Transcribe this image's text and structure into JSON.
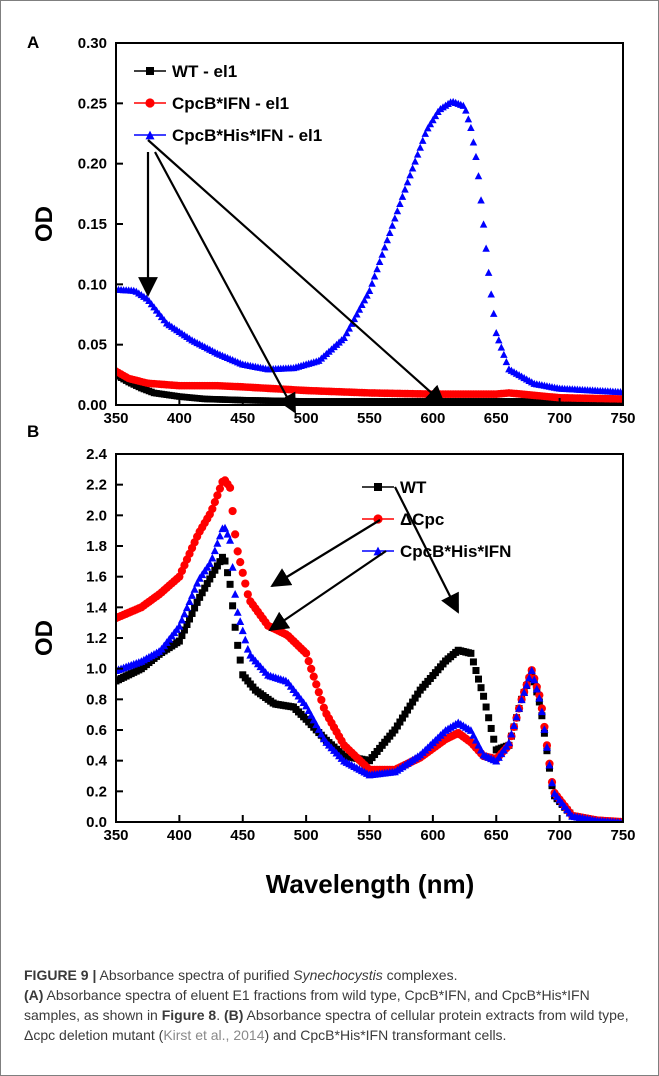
{
  "figure": {
    "caption": {
      "label": "FIGURE 9 |",
      "t1": " Absorbance spectra of purified ",
      "species": "Synechocystis",
      "t2": " complexes.",
      "a_tag": "(A)",
      "t3": " Absorbance spectra of eluent E1 fractions from wild type, CpcB*IFN, and CpcB*His*IFN samples, as shown in ",
      "fig8": "Figure 8",
      "t4": ". ",
      "b_tag": "(B)",
      "t5": " Absorbance spectra of cellular protein extracts from wild type, Δcpc deletion mutant (",
      "citation": "Kirst et al., 2014",
      "t6": ") and CpcB*His*IFN transformant cells."
    }
  },
  "chart_data": [
    {
      "panel": "A",
      "type": "scatter",
      "xlabel": "",
      "ylabel": "OD",
      "xlim": [
        350,
        750
      ],
      "ylim": [
        0.0,
        0.3
      ],
      "xticks": [
        350,
        400,
        450,
        500,
        550,
        600,
        650,
        700,
        750
      ],
      "yticks": [
        "0.00",
        "0.05",
        "0.10",
        "0.15",
        "0.20",
        "0.25",
        "0.30"
      ],
      "legend": "top-left",
      "series": [
        {
          "name": "WT - el1",
          "color": "#000000",
          "marker": "square",
          "x": [
            350,
            360,
            370,
            380,
            400,
            420,
            450,
            500,
            550,
            600,
            650,
            700,
            750
          ],
          "y": [
            0.025,
            0.019,
            0.014,
            0.01,
            0.007,
            0.005,
            0.004,
            0.003,
            0.003,
            0.003,
            0.003,
            0.003,
            0.003
          ]
        },
        {
          "name": "CpcB*IFN - el1",
          "color": "#ff0000",
          "marker": "circle",
          "x": [
            350,
            360,
            375,
            400,
            430,
            450,
            500,
            550,
            600,
            650,
            660,
            680,
            700,
            750
          ],
          "y": [
            0.028,
            0.022,
            0.018,
            0.016,
            0.016,
            0.015,
            0.012,
            0.01,
            0.009,
            0.009,
            0.01,
            0.008,
            0.006,
            0.005
          ]
        },
        {
          "name": "CpcB*His*IFN - el1",
          "color": "#0000ff",
          "marker": "triangle",
          "x": [
            350,
            365,
            375,
            390,
            410,
            430,
            450,
            470,
            490,
            510,
            530,
            550,
            565,
            580,
            595,
            605,
            615,
            625,
            630,
            635,
            640,
            645,
            650,
            660,
            680,
            700,
            750
          ],
          "y": [
            0.096,
            0.095,
            0.088,
            0.068,
            0.054,
            0.043,
            0.034,
            0.03,
            0.031,
            0.037,
            0.056,
            0.095,
            0.14,
            0.185,
            0.228,
            0.245,
            0.252,
            0.248,
            0.23,
            0.2,
            0.15,
            0.1,
            0.06,
            0.03,
            0.018,
            0.014,
            0.011
          ]
        }
      ],
      "annotations": "arrows from legend markers to curves"
    },
    {
      "panel": "B",
      "type": "scatter",
      "xlabel": "Wavelength (nm)",
      "ylabel": "OD",
      "xlim": [
        350,
        750
      ],
      "ylim": [
        0.0,
        2.4
      ],
      "xticks": [
        350,
        400,
        450,
        500,
        550,
        600,
        650,
        700,
        750
      ],
      "yticks": [
        "0.0",
        "0.2",
        "0.4",
        "0.6",
        "0.8",
        "1.0",
        "1.2",
        "1.4",
        "1.6",
        "1.8",
        "2.0",
        "2.2",
        "2.4"
      ],
      "legend": "top-right",
      "series": [
        {
          "name": "WT",
          "color": "#000000",
          "marker": "square",
          "x": [
            350,
            370,
            385,
            400,
            415,
            425,
            435,
            440,
            445,
            450,
            460,
            475,
            490,
            500,
            515,
            530,
            550,
            570,
            590,
            610,
            620,
            630,
            640,
            650,
            660,
            670,
            678,
            685,
            695,
            710,
            730,
            750
          ],
          "y": [
            0.92,
            1.0,
            1.1,
            1.18,
            1.45,
            1.6,
            1.74,
            1.55,
            1.2,
            0.96,
            0.86,
            0.77,
            0.75,
            0.67,
            0.54,
            0.43,
            0.4,
            0.6,
            0.86,
            1.05,
            1.12,
            1.1,
            0.82,
            0.47,
            0.5,
            0.8,
            0.98,
            0.75,
            0.18,
            0.04,
            0.01,
            0.0
          ]
        },
        {
          "name": "ΔCpc",
          "color": "#ff0000",
          "marker": "circle",
          "x": [
            350,
            370,
            385,
            400,
            415,
            425,
            435,
            440,
            445,
            455,
            470,
            485,
            500,
            515,
            530,
            550,
            570,
            590,
            610,
            620,
            630,
            640,
            650,
            660,
            670,
            678,
            685,
            695,
            710,
            730,
            750
          ],
          "y": [
            1.33,
            1.4,
            1.49,
            1.6,
            1.88,
            2.02,
            2.24,
            2.18,
            1.8,
            1.45,
            1.28,
            1.22,
            1.1,
            0.72,
            0.5,
            0.34,
            0.34,
            0.42,
            0.54,
            0.58,
            0.52,
            0.43,
            0.41,
            0.5,
            0.8,
            0.99,
            0.8,
            0.2,
            0.04,
            0.01,
            0.0
          ]
        },
        {
          "name": "CpcB*His*IFN",
          "color": "#0000ff",
          "marker": "triangle",
          "x": [
            350,
            370,
            385,
            400,
            415,
            425,
            435,
            440,
            445,
            455,
            470,
            485,
            500,
            515,
            530,
            550,
            570,
            590,
            610,
            620,
            630,
            640,
            650,
            660,
            670,
            678,
            685,
            695,
            710,
            730,
            750
          ],
          "y": [
            0.99,
            1.05,
            1.12,
            1.28,
            1.58,
            1.7,
            1.94,
            1.84,
            1.4,
            1.1,
            0.96,
            0.92,
            0.76,
            0.53,
            0.4,
            0.31,
            0.33,
            0.44,
            0.6,
            0.65,
            0.6,
            0.44,
            0.4,
            0.52,
            0.8,
            0.99,
            0.78,
            0.2,
            0.04,
            0.01,
            0.0
          ]
        }
      ],
      "annotations": "arrows from legend markers to curves"
    }
  ]
}
